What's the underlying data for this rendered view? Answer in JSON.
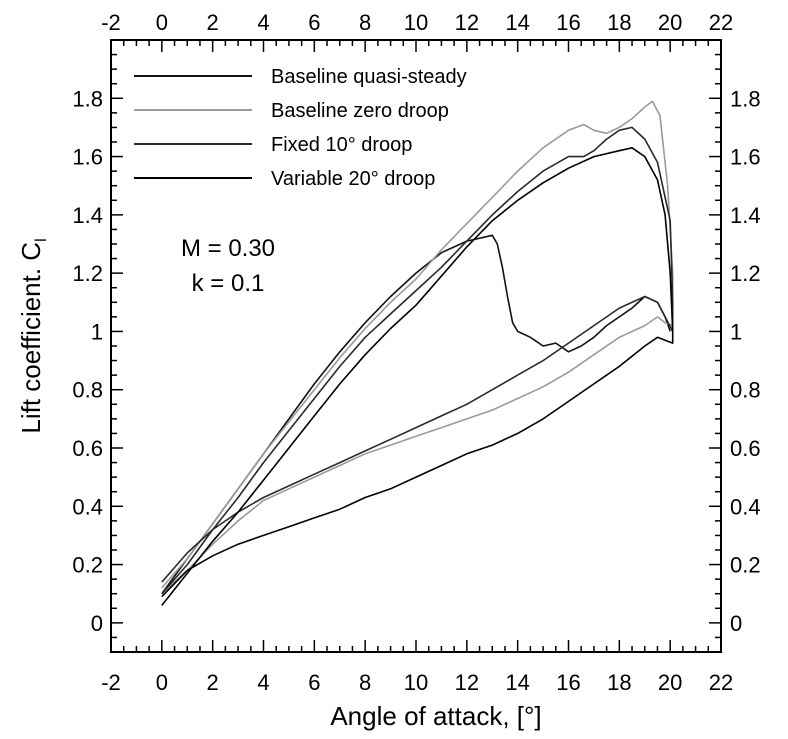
{
  "chart_data": {
    "type": "line",
    "xlabel": "Angle of attack,  [°]",
    "ylabel": "Lift coefficient.  C",
    "ylabel_subscript": "l",
    "xlim": [
      -2,
      22
    ],
    "ylim": [
      -0.1,
      2.0
    ],
    "x_ticks": [
      "-2",
      "0",
      "2",
      "4",
      "6",
      "8",
      "10",
      "12",
      "14",
      "16",
      "18",
      "20",
      "22"
    ],
    "y_ticks_left": [
      "0",
      "0.2",
      "0.4",
      "0.6",
      "0.8",
      "1",
      "1.2",
      "1.4",
      "1.6",
      "1.8"
    ],
    "y_ticks_right": [
      "0",
      "0.2",
      "0.4",
      "0.6",
      "0.8",
      "1",
      "1.2",
      "1.4",
      "1.6",
      "1.8"
    ],
    "annotations": [
      "M = 0.30",
      "k = 0.1"
    ],
    "legend_position": "top-left",
    "grid": false,
    "series": [
      {
        "name": "Baseline quasi-steady",
        "color": "#111111",
        "x": [
          0,
          1,
          2,
          3,
          4,
          5,
          6,
          7,
          8,
          9,
          10,
          11,
          12,
          13,
          13.2,
          13.4,
          13.6,
          13.8,
          14,
          14.5,
          15,
          15.5,
          16,
          16.5,
          17,
          17.5,
          18,
          18.5,
          19,
          19.5,
          19.8,
          20
        ],
        "y": [
          0.1,
          0.22,
          0.34,
          0.46,
          0.58,
          0.7,
          0.82,
          0.93,
          1.03,
          1.12,
          1.2,
          1.27,
          1.31,
          1.33,
          1.3,
          1.22,
          1.12,
          1.03,
          1.0,
          0.98,
          0.95,
          0.96,
          0.93,
          0.95,
          0.98,
          1.02,
          1.05,
          1.08,
          1.12,
          1.1,
          1.05,
          1.0
        ]
      },
      {
        "name": "Baseline zero droop",
        "color": "#9a9a9a",
        "x": [
          0,
          1,
          2,
          3,
          4,
          5,
          6,
          7,
          8,
          9,
          10,
          11,
          12,
          13,
          14,
          15,
          16,
          16.6,
          17,
          17.5,
          18,
          18.5,
          19,
          19.3,
          19.6,
          19.9,
          20.1,
          20.1,
          19.8,
          19.5,
          19,
          18,
          17,
          16,
          15,
          14,
          13,
          12,
          11,
          10,
          9,
          8,
          7,
          6,
          5,
          4,
          3,
          2,
          1,
          0
        ],
        "y": [
          0.12,
          0.22,
          0.34,
          0.46,
          0.58,
          0.69,
          0.8,
          0.91,
          1.01,
          1.1,
          1.18,
          1.28,
          1.37,
          1.46,
          1.55,
          1.63,
          1.69,
          1.71,
          1.69,
          1.68,
          1.7,
          1.73,
          1.77,
          1.79,
          1.74,
          1.5,
          1.2,
          1.02,
          1.03,
          1.05,
          1.02,
          0.98,
          0.92,
          0.86,
          0.81,
          0.77,
          0.73,
          0.7,
          0.67,
          0.64,
          0.61,
          0.58,
          0.54,
          0.5,
          0.46,
          0.42,
          0.35,
          0.27,
          0.18,
          0.1
        ]
      },
      {
        "name": "Fixed 10° droop",
        "color": "#2a2a2a",
        "x": [
          0,
          1,
          2,
          3,
          4,
          5,
          6,
          7,
          8,
          9,
          10,
          11,
          12,
          13,
          14,
          15,
          16,
          16.6,
          17,
          17.5,
          18,
          18.5,
          19,
          19.5,
          20,
          20.1,
          20.1,
          19.8,
          19.5,
          19,
          18,
          17,
          16,
          15,
          14,
          13,
          12,
          11,
          10,
          9,
          8,
          7,
          6,
          5,
          4,
          3,
          2,
          1,
          0
        ],
        "y": [
          0.1,
          0.2,
          0.32,
          0.43,
          0.55,
          0.66,
          0.77,
          0.88,
          0.98,
          1.06,
          1.14,
          1.22,
          1.31,
          1.4,
          1.48,
          1.55,
          1.6,
          1.6,
          1.62,
          1.66,
          1.69,
          1.7,
          1.66,
          1.58,
          1.38,
          1.1,
          1.0,
          1.05,
          1.1,
          1.12,
          1.08,
          1.02,
          0.96,
          0.9,
          0.85,
          0.8,
          0.75,
          0.71,
          0.67,
          0.63,
          0.59,
          0.55,
          0.51,
          0.47,
          0.43,
          0.38,
          0.32,
          0.24,
          0.14
        ]
      },
      {
        "name": "Variable 20° droop",
        "color": "#000000",
        "x": [
          0,
          1,
          2,
          3,
          4,
          5,
          6,
          7,
          8,
          9,
          10,
          11,
          12,
          13,
          14,
          15,
          16,
          17,
          18,
          18.5,
          19,
          19.5,
          19.8,
          20,
          20.1,
          20.1,
          19.8,
          19.5,
          19,
          18,
          17,
          16,
          15,
          14,
          13,
          12,
          11,
          10,
          9,
          8,
          7,
          6,
          5,
          4,
          3,
          2,
          1,
          0
        ],
        "y": [
          0.06,
          0.17,
          0.28,
          0.38,
          0.49,
          0.6,
          0.71,
          0.82,
          0.92,
          1.01,
          1.09,
          1.19,
          1.29,
          1.38,
          1.45,
          1.51,
          1.56,
          1.6,
          1.62,
          1.63,
          1.6,
          1.52,
          1.4,
          1.2,
          1.0,
          0.96,
          0.97,
          0.98,
          0.95,
          0.88,
          0.82,
          0.76,
          0.7,
          0.65,
          0.61,
          0.58,
          0.54,
          0.5,
          0.46,
          0.43,
          0.39,
          0.36,
          0.33,
          0.3,
          0.27,
          0.23,
          0.18,
          0.09
        ]
      }
    ]
  }
}
